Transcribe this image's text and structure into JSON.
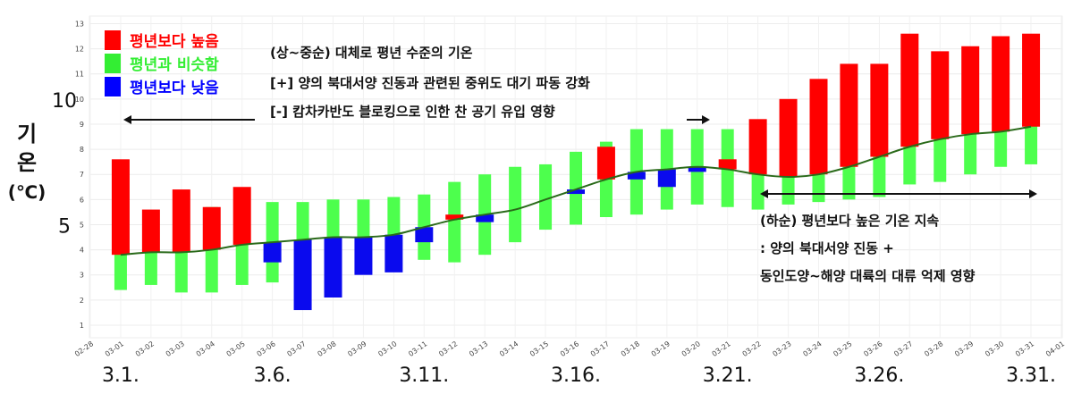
{
  "chart_data": {
    "type": "bar",
    "ylabel": [
      "기",
      "온",
      "(℃)"
    ],
    "ylim": [
      0.5,
      13.3
    ],
    "y_ticks": [
      1,
      2,
      3,
      4,
      5,
      6,
      7,
      8,
      9,
      10,
      11,
      12,
      13
    ],
    "y_big_ticks": [
      {
        "value": 10,
        "label": "10"
      },
      {
        "value": 5,
        "label": "5"
      }
    ],
    "x_tick_labels": [
      "02-28",
      "03-01",
      "03-02",
      "03-03",
      "03-04",
      "03-05",
      "03-06",
      "03-07",
      "03-08",
      "03-09",
      "03-10",
      "03-11",
      "03-12",
      "03-13",
      "03-14",
      "03-15",
      "03-16",
      "03-17",
      "03-18",
      "03-19",
      "03-20",
      "03-21",
      "03-22",
      "03-23",
      "03-24",
      "03-25",
      "03-26",
      "03-27",
      "03-28",
      "03-29",
      "03-30",
      "03-31",
      "04-01"
    ],
    "x_big_labels": [
      {
        "date": "03-01",
        "label": "3.1."
      },
      {
        "date": "03-06",
        "label": "3.6."
      },
      {
        "date": "03-11",
        "label": "3.11."
      },
      {
        "date": "03-16",
        "label": "3.16."
      },
      {
        "date": "03-21",
        "label": "3.21."
      },
      {
        "date": "03-26",
        "label": "3.26."
      },
      {
        "date": "03-31",
        "label": "3.31."
      }
    ],
    "legend": [
      {
        "label": "평년보다 높음",
        "color": "#ff0000"
      },
      {
        "label": "평년과 비슷함",
        "color": "#33ee33"
      },
      {
        "label": "평년보다 낮음",
        "color": "#0000ff"
      }
    ],
    "colors": {
      "above": "#ff0000",
      "similar": "#4dff4d",
      "below": "#0a0aee",
      "normal_line": "#2a6a1a"
    },
    "dates": [
      "03-01",
      "03-02",
      "03-03",
      "03-04",
      "03-05",
      "03-06",
      "03-07",
      "03-08",
      "03-09",
      "03-10",
      "03-11",
      "03-12",
      "03-13",
      "03-14",
      "03-15",
      "03-16",
      "03-17",
      "03-18",
      "03-19",
      "03-20",
      "03-21",
      "03-22",
      "03-23",
      "03-24",
      "03-25",
      "03-26",
      "03-27",
      "03-28",
      "03-29",
      "03-30",
      "03-31"
    ],
    "similar_range_low": [
      2.4,
      2.6,
      2.3,
      2.3,
      2.6,
      2.7,
      2.9,
      3.0,
      3.1,
      3.2,
      3.6,
      3.5,
      3.8,
      4.3,
      4.8,
      5.0,
      5.3,
      5.4,
      5.6,
      5.8,
      5.7,
      5.6,
      5.8,
      5.9,
      6.0,
      6.1,
      6.6,
      6.7,
      7.0,
      7.3,
      7.4
    ],
    "similar_range_high": [
      5.2,
      5.2,
      5.5,
      5.7,
      5.8,
      5.9,
      5.9,
      6.0,
      6.0,
      6.1,
      6.2,
      6.7,
      7.0,
      7.3,
      7.4,
      7.9,
      8.3,
      8.8,
      8.8,
      8.8,
      8.8,
      8.4,
      8.1,
      8.4,
      8.8,
      9.1,
      9.4,
      9.8,
      10.2,
      10.1,
      10.4
    ],
    "normal": [
      3.8,
      3.9,
      3.9,
      4.0,
      4.2,
      4.3,
      4.4,
      4.5,
      4.5,
      4.6,
      4.9,
      5.2,
      5.4,
      5.6,
      6.0,
      6.4,
      6.8,
      7.1,
      7.2,
      7.3,
      7.2,
      7.0,
      6.9,
      7.0,
      7.3,
      7.7,
      8.1,
      8.4,
      8.6,
      8.7,
      8.9
    ],
    "observed": [
      7.6,
      5.6,
      6.4,
      5.7,
      6.5,
      3.5,
      1.6,
      2.1,
      3.0,
      3.1,
      4.3,
      5.4,
      5.1,
      null,
      null,
      6.3,
      8.1,
      6.8,
      6.5,
      7.1,
      7.6,
      9.2,
      10.0,
      10.8,
      11.4,
      11.4,
      12.6,
      11.9,
      12.1,
      12.5,
      12.6
    ],
    "periods": [
      {
        "label": "(상~중순)",
        "from": "03-01",
        "to": "03-20",
        "arrow": "both"
      },
      {
        "label": "(하순)",
        "from": "03-22",
        "to": "03-31",
        "arrow": "both"
      }
    ],
    "annotations": {
      "upper": [
        "(상~중순) 대체로 평년 수준의 기온",
        "[+] 양의 북대서양 진동과 관련된 중위도 대기 파동 강화",
        "[-] 캄차카반도 블로킹으로 인한 찬 공기 유입 영향"
      ],
      "lower": [
        "(하순) 평년보다 높은 기온 지속",
        ": 양의 북대서양 진동 +",
        "동인도양~해양 대륙의 대류 억제 영향"
      ]
    },
    "grid": true
  }
}
